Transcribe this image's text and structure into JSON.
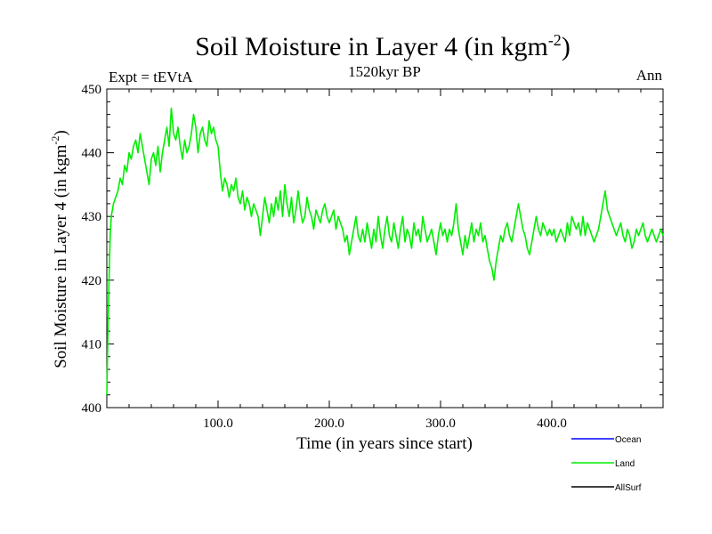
{
  "chart_data": {
    "type": "line",
    "title_main": "Soil Moisture in Layer 4 (in kgm",
    "title_sup": "-2",
    "title_close": ")",
    "subtitle_left": "Expt = tEVtA",
    "subtitle_center": "1520kyr BP",
    "subtitle_right": "Ann",
    "xlabel": "Time (in years since start)",
    "ylabel_main": "Soil Moisture in Layer 4 (in kgm",
    "ylabel_sup": "-2",
    "ylabel_close": ")",
    "xlim": [
      0,
      500
    ],
    "ylim": [
      400,
      450
    ],
    "xticks": [
      100,
      200,
      300,
      400
    ],
    "xtick_labels": [
      "100.0",
      "200.0",
      "300.0",
      "400.0"
    ],
    "yticks": [
      400,
      410,
      420,
      430,
      440,
      450
    ],
    "ytick_labels": [
      "400",
      "410",
      "420",
      "430",
      "440",
      "450"
    ],
    "series": [
      {
        "name": "Ocean",
        "color": "#0000ff",
        "values": []
      },
      {
        "name": "Land",
        "color": "#00ee00",
        "points": [
          [
            0,
            402
          ],
          [
            1,
            412
          ],
          [
            2,
            420
          ],
          [
            3,
            427
          ],
          [
            4,
            430
          ],
          [
            6,
            432
          ],
          [
            8,
            433
          ],
          [
            10,
            434
          ],
          [
            12,
            436
          ],
          [
            14,
            435
          ],
          [
            16,
            438
          ],
          [
            18,
            437
          ],
          [
            20,
            440
          ],
          [
            22,
            439
          ],
          [
            24,
            441
          ],
          [
            26,
            442
          ],
          [
            28,
            440
          ],
          [
            30,
            443
          ],
          [
            32,
            441
          ],
          [
            34,
            439
          ],
          [
            36,
            437
          ],
          [
            38,
            435
          ],
          [
            40,
            439
          ],
          [
            42,
            440
          ],
          [
            44,
            438
          ],
          [
            46,
            441
          ],
          [
            48,
            437
          ],
          [
            50,
            440
          ],
          [
            52,
            442
          ],
          [
            54,
            444
          ],
          [
            56,
            441
          ],
          [
            58,
            447
          ],
          [
            60,
            443
          ],
          [
            62,
            442
          ],
          [
            64,
            444
          ],
          [
            66,
            441
          ],
          [
            68,
            439
          ],
          [
            70,
            442
          ],
          [
            72,
            440
          ],
          [
            74,
            441
          ],
          [
            76,
            443
          ],
          [
            78,
            446
          ],
          [
            80,
            444
          ],
          [
            82,
            440
          ],
          [
            84,
            443
          ],
          [
            86,
            444
          ],
          [
            88,
            442
          ],
          [
            90,
            441
          ],
          [
            92,
            445
          ],
          [
            94,
            443
          ],
          [
            96,
            444
          ],
          [
            98,
            442
          ],
          [
            100,
            441
          ],
          [
            102,
            437
          ],
          [
            104,
            434
          ],
          [
            106,
            436
          ],
          [
            108,
            435
          ],
          [
            110,
            433
          ],
          [
            112,
            435
          ],
          [
            114,
            434
          ],
          [
            116,
            436
          ],
          [
            118,
            433
          ],
          [
            120,
            432
          ],
          [
            122,
            434
          ],
          [
            124,
            431
          ],
          [
            126,
            433
          ],
          [
            128,
            432
          ],
          [
            130,
            430
          ],
          [
            132,
            432
          ],
          [
            134,
            431
          ],
          [
            136,
            430
          ],
          [
            138,
            427
          ],
          [
            140,
            430
          ],
          [
            142,
            433
          ],
          [
            144,
            431
          ],
          [
            146,
            429
          ],
          [
            148,
            432
          ],
          [
            150,
            430
          ],
          [
            152,
            433
          ],
          [
            154,
            431
          ],
          [
            156,
            434
          ],
          [
            158,
            430
          ],
          [
            160,
            435
          ],
          [
            162,
            432
          ],
          [
            164,
            430
          ],
          [
            166,
            433
          ],
          [
            168,
            429
          ],
          [
            170,
            431
          ],
          [
            172,
            434
          ],
          [
            174,
            431
          ],
          [
            176,
            429
          ],
          [
            178,
            430
          ],
          [
            180,
            433
          ],
          [
            182,
            431
          ],
          [
            184,
            430
          ],
          [
            186,
            428
          ],
          [
            188,
            431
          ],
          [
            190,
            430
          ],
          [
            192,
            429
          ],
          [
            194,
            431
          ],
          [
            196,
            432
          ],
          [
            198,
            430
          ],
          [
            200,
            429
          ],
          [
            202,
            430
          ],
          [
            204,
            431
          ],
          [
            206,
            428
          ],
          [
            208,
            430
          ],
          [
            210,
            429
          ],
          [
            212,
            428
          ],
          [
            214,
            426
          ],
          [
            216,
            427
          ],
          [
            218,
            424
          ],
          [
            220,
            426
          ],
          [
            222,
            428
          ],
          [
            224,
            430
          ],
          [
            226,
            427
          ],
          [
            228,
            426
          ],
          [
            230,
            428
          ],
          [
            232,
            426
          ],
          [
            234,
            429
          ],
          [
            236,
            427
          ],
          [
            238,
            425
          ],
          [
            240,
            428
          ],
          [
            242,
            426
          ],
          [
            244,
            430
          ],
          [
            246,
            427
          ],
          [
            248,
            425
          ],
          [
            250,
            428
          ],
          [
            252,
            430
          ],
          [
            254,
            427
          ],
          [
            256,
            426
          ],
          [
            258,
            429
          ],
          [
            260,
            427
          ],
          [
            262,
            425
          ],
          [
            264,
            428
          ],
          [
            266,
            430
          ],
          [
            268,
            426
          ],
          [
            270,
            428
          ],
          [
            272,
            427
          ],
          [
            274,
            425
          ],
          [
            276,
            429
          ],
          [
            278,
            427
          ],
          [
            280,
            428
          ],
          [
            282,
            426
          ],
          [
            284,
            430
          ],
          [
            286,
            428
          ],
          [
            288,
            426
          ],
          [
            290,
            427
          ],
          [
            292,
            428
          ],
          [
            294,
            426
          ],
          [
            296,
            424
          ],
          [
            298,
            427
          ],
          [
            300,
            429
          ],
          [
            302,
            427
          ],
          [
            304,
            428
          ],
          [
            306,
            426
          ],
          [
            308,
            428
          ],
          [
            310,
            427
          ],
          [
            312,
            429
          ],
          [
            314,
            432
          ],
          [
            316,
            428
          ],
          [
            318,
            426
          ],
          [
            320,
            424
          ],
          [
            322,
            427
          ],
          [
            324,
            425
          ],
          [
            326,
            427
          ],
          [
            328,
            429
          ],
          [
            330,
            426
          ],
          [
            332,
            428
          ],
          [
            334,
            427
          ],
          [
            336,
            429
          ],
          [
            338,
            426
          ],
          [
            340,
            427
          ],
          [
            342,
            425
          ],
          [
            344,
            423
          ],
          [
            346,
            422
          ],
          [
            348,
            420
          ],
          [
            350,
            423
          ],
          [
            352,
            425
          ],
          [
            354,
            427
          ],
          [
            356,
            426
          ],
          [
            358,
            428
          ],
          [
            360,
            429
          ],
          [
            362,
            427
          ],
          [
            364,
            426
          ],
          [
            366,
            428
          ],
          [
            368,
            430
          ],
          [
            370,
            432
          ],
          [
            372,
            430
          ],
          [
            374,
            428
          ],
          [
            376,
            427
          ],
          [
            378,
            425
          ],
          [
            380,
            424
          ],
          [
            382,
            426
          ],
          [
            384,
            428
          ],
          [
            386,
            430
          ],
          [
            388,
            428
          ],
          [
            390,
            427
          ],
          [
            392,
            429
          ],
          [
            394,
            428
          ],
          [
            396,
            427
          ],
          [
            398,
            428
          ],
          [
            400,
            427
          ],
          [
            402,
            428
          ],
          [
            404,
            426
          ],
          [
            406,
            427
          ],
          [
            408,
            428
          ],
          [
            410,
            427
          ],
          [
            412,
            426
          ],
          [
            414,
            429
          ],
          [
            416,
            427
          ],
          [
            418,
            430
          ],
          [
            420,
            429
          ],
          [
            422,
            428
          ],
          [
            424,
            429
          ],
          [
            426,
            427
          ],
          [
            428,
            430
          ],
          [
            430,
            427
          ],
          [
            432,
            429
          ],
          [
            434,
            428
          ],
          [
            436,
            427
          ],
          [
            438,
            426
          ],
          [
            440,
            427
          ],
          [
            442,
            428
          ],
          [
            444,
            430
          ],
          [
            446,
            432
          ],
          [
            448,
            434
          ],
          [
            450,
            431
          ],
          [
            452,
            430
          ],
          [
            454,
            429
          ],
          [
            456,
            428
          ],
          [
            458,
            427
          ],
          [
            460,
            428
          ],
          [
            462,
            429
          ],
          [
            464,
            427
          ],
          [
            466,
            426
          ],
          [
            468,
            428
          ],
          [
            470,
            427
          ],
          [
            472,
            425
          ],
          [
            474,
            426
          ],
          [
            476,
            428
          ],
          [
            478,
            427
          ],
          [
            480,
            428
          ],
          [
            482,
            429
          ],
          [
            484,
            427
          ],
          [
            486,
            426
          ],
          [
            488,
            427
          ],
          [
            490,
            428
          ],
          [
            492,
            427
          ],
          [
            494,
            426
          ],
          [
            496,
            427
          ],
          [
            498,
            428
          ],
          [
            500,
            427
          ]
        ]
      },
      {
        "name": "AllSurf",
        "color": "#000000",
        "values": []
      }
    ],
    "legend_placement": "bottom-right"
  }
}
